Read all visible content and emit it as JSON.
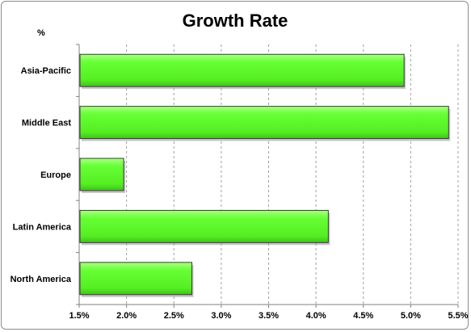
{
  "chart_data": {
    "type": "bar",
    "orientation": "horizontal",
    "title": "Growth Rate",
    "unit_label": "%",
    "categories": [
      "Asia-Pacific",
      "Middle East",
      "Europe",
      "Latin America",
      "North America"
    ],
    "values": [
      4.93,
      5.4,
      1.97,
      4.13,
      2.69
    ],
    "xlim": [
      1.5,
      5.5
    ],
    "x_ticks": [
      "1.5%",
      "2.0%",
      "2.5%",
      "3.0%",
      "3.5%",
      "4.0%",
      "4.5%",
      "5.0%",
      "5.5%"
    ],
    "x_tick_values": [
      1.5,
      2.0,
      2.5,
      3.0,
      3.5,
      4.0,
      4.5,
      5.0,
      5.5
    ],
    "grid": "vertical-dashed",
    "bar_color": "#66ff33",
    "bar_edge_color": "#3a3a3a"
  }
}
